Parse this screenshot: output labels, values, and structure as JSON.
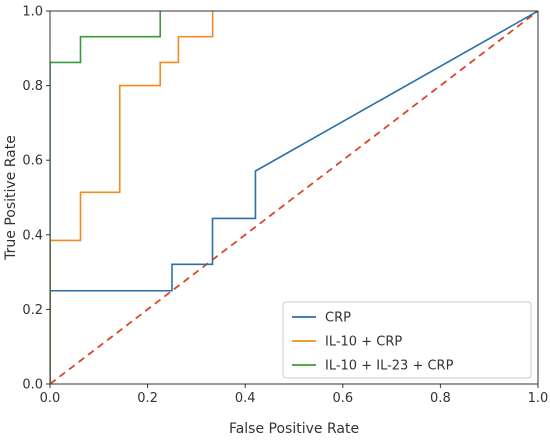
{
  "chart_data": {
    "type": "line",
    "title": "",
    "xlabel": "False Positive Rate",
    "ylabel": "True Positive Rate",
    "xlim": [
      0.0,
      1.0
    ],
    "ylim": [
      0.0,
      1.0
    ],
    "xticks": [
      "0.0",
      "0.2",
      "0.4",
      "0.6",
      "0.8",
      "1.0"
    ],
    "yticks": [
      "0.0",
      "0.2",
      "0.4",
      "0.6",
      "0.8",
      "1.0"
    ],
    "grid": false,
    "legend_position": "lower-right",
    "series": [
      {
        "name": "CRP",
        "color": "#2c6fa8",
        "x": [
          0.0,
          0.0,
          0.25,
          0.25,
          0.333,
          0.333,
          0.421,
          0.421,
          1.0
        ],
        "y": [
          0.0,
          0.25,
          0.25,
          0.321,
          0.321,
          0.444,
          0.444,
          0.571,
          1.0
        ]
      },
      {
        "name": "IL-10 + CRP",
        "color": "#f28c1e",
        "x": [
          0.0,
          0.0,
          0.0625,
          0.0625,
          0.1429,
          0.1429,
          0.2258,
          0.2258,
          0.2632,
          0.2632,
          0.3333,
          0.3333
        ],
        "y": [
          0.0,
          0.385,
          0.385,
          0.514,
          0.514,
          0.8,
          0.8,
          0.862,
          0.862,
          0.931,
          0.931,
          1.0
        ]
      },
      {
        "name": "IL-10 + IL-23 + CRP",
        "color": "#3b9b3b",
        "x": [
          0.0,
          0.0,
          0.0625,
          0.0625,
          0.2258,
          0.2258
        ],
        "y": [
          0.0,
          0.862,
          0.862,
          0.931,
          0.931,
          1.0
        ]
      }
    ],
    "reference_line": {
      "color": "#d9472b",
      "style": "dashed",
      "x": [
        0.0,
        1.0
      ],
      "y": [
        0.0,
        1.0
      ]
    }
  }
}
